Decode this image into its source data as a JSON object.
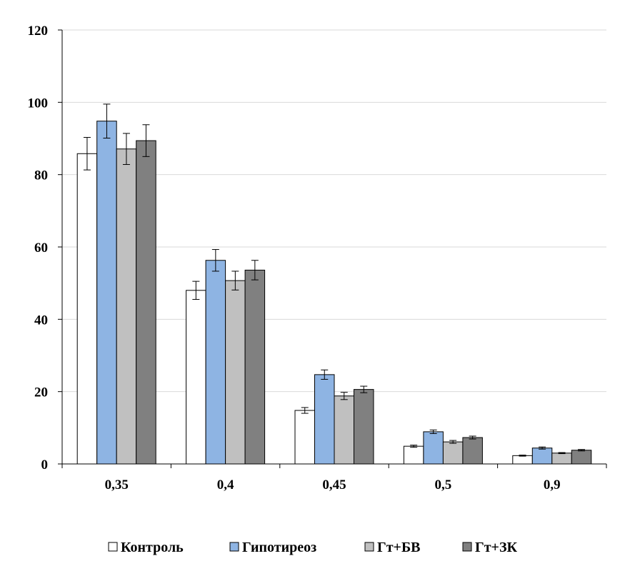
{
  "chart_data": {
    "type": "bar",
    "title": "",
    "xlabel": "",
    "ylabel": "",
    "ylim": [
      0,
      120
    ],
    "yticks": [
      0,
      20,
      40,
      60,
      80,
      100,
      120
    ],
    "grid": true,
    "legend_position": "bottom",
    "categories": [
      "0,35",
      "0,4",
      "0,45",
      "0,5",
      "0,9"
    ],
    "series": [
      {
        "name": "Контроль",
        "color": "#ffffff",
        "values": [
          85.8,
          48.0,
          14.8,
          4.9,
          2.3
        ],
        "errors": [
          4.5,
          2.5,
          0.8,
          0.3,
          0.15
        ]
      },
      {
        "name": "Гипотиреоз",
        "color": "#8eb4e3",
        "values": [
          94.8,
          56.3,
          24.7,
          8.9,
          4.4
        ],
        "errors": [
          4.7,
          3.0,
          1.3,
          0.5,
          0.3
        ]
      },
      {
        "name": "Гт+БВ",
        "color": "#c0c0c0",
        "values": [
          87.1,
          50.7,
          18.8,
          6.1,
          3.0
        ],
        "errors": [
          4.3,
          2.6,
          1.0,
          0.4,
          0.15
        ]
      },
      {
        "name": "Гт+ЗК",
        "color": "#808080",
        "values": [
          89.4,
          53.6,
          20.6,
          7.3,
          3.8
        ],
        "errors": [
          4.4,
          2.7,
          0.9,
          0.4,
          0.2
        ]
      }
    ]
  }
}
